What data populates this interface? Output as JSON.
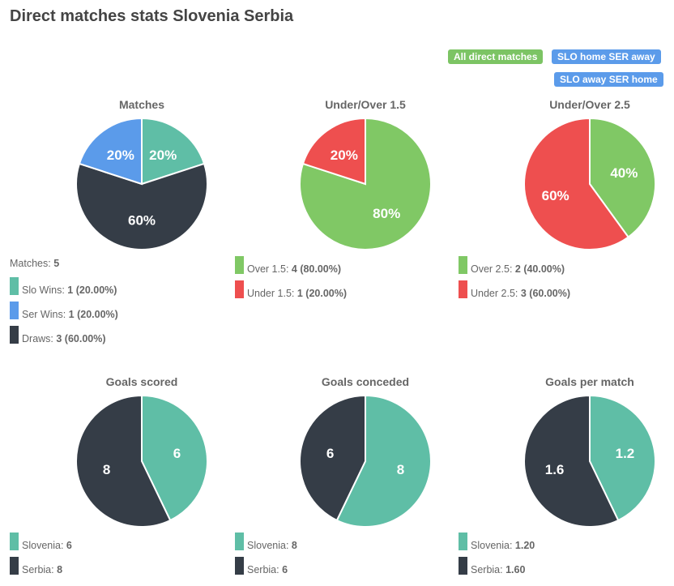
{
  "title": "Direct matches stats Slovenia Serbia",
  "filters": [
    {
      "label": "All direct matches",
      "color": "#7cc464",
      "active": true
    },
    {
      "label": "SLO home SER away",
      "color": "#5b9bea"
    },
    {
      "label": "SLO away SER home",
      "color": "#5b9bea"
    }
  ],
  "colors": {
    "slovenia": "#5fbea6",
    "serbia_blue": "#5b9bea",
    "dark": "#353d47",
    "over": "#80c865",
    "under": "#ee4f4f"
  },
  "chart_data": [
    {
      "type": "pie",
      "title": "Matches",
      "summary": {
        "label": "Matches:",
        "value": "5"
      },
      "series": [
        {
          "name": "Slo Wins",
          "value": 1,
          "label": "20%",
          "legend_value": "1 (20.00%)",
          "color": "#5fbea6"
        },
        {
          "name": "Draws",
          "value": 3,
          "label": "60%",
          "legend_value": "3 (60.00%)",
          "color": "#353d47"
        },
        {
          "name": "Ser Wins",
          "value": 1,
          "label": "20%",
          "legend_value": "1 (20.00%)",
          "color": "#5b9bea"
        }
      ],
      "legend_order": [
        0,
        2,
        1
      ]
    },
    {
      "type": "pie",
      "title": "Under/Over 1.5",
      "series": [
        {
          "name": "Over 1.5",
          "value": 4,
          "label": "80%",
          "legend_value": "4 (80.00%)",
          "color": "#80c865"
        },
        {
          "name": "Under 1.5",
          "value": 1,
          "label": "20%",
          "legend_value": "1 (20.00%)",
          "color": "#ee4f4f"
        }
      ],
      "legend_order": [
        0,
        1
      ]
    },
    {
      "type": "pie",
      "title": "Under/Over 2.5",
      "series": [
        {
          "name": "Over 2.5",
          "value": 2,
          "label": "40%",
          "legend_value": "2 (40.00%)",
          "color": "#80c865"
        },
        {
          "name": "Under 2.5",
          "value": 3,
          "label": "60%",
          "legend_value": "3 (60.00%)",
          "color": "#ee4f4f"
        }
      ],
      "legend_order": [
        0,
        1
      ]
    },
    {
      "type": "pie",
      "title": "Goals scored",
      "series": [
        {
          "name": "Slovenia",
          "value": 6,
          "label": "6",
          "legend_value": "6",
          "color": "#5fbea6"
        },
        {
          "name": "Serbia",
          "value": 8,
          "label": "8",
          "legend_value": "8",
          "color": "#353d47"
        }
      ],
      "legend_order": [
        0,
        1
      ]
    },
    {
      "type": "pie",
      "title": "Goals conceded",
      "series": [
        {
          "name": "Slovenia",
          "value": 8,
          "label": "8",
          "legend_value": "8",
          "color": "#5fbea6"
        },
        {
          "name": "Serbia",
          "value": 6,
          "label": "6",
          "legend_value": "6",
          "color": "#353d47"
        }
      ],
      "legend_order": [
        0,
        1
      ]
    },
    {
      "type": "pie",
      "title": "Goals per match",
      "series": [
        {
          "name": "Slovenia",
          "value": 1.2,
          "label": "1.2",
          "legend_value": "1.20",
          "color": "#5fbea6"
        },
        {
          "name": "Serbia",
          "value": 1.6,
          "label": "1.6",
          "legend_value": "1.60",
          "color": "#353d47"
        }
      ],
      "legend_order": [
        0,
        1
      ]
    }
  ]
}
